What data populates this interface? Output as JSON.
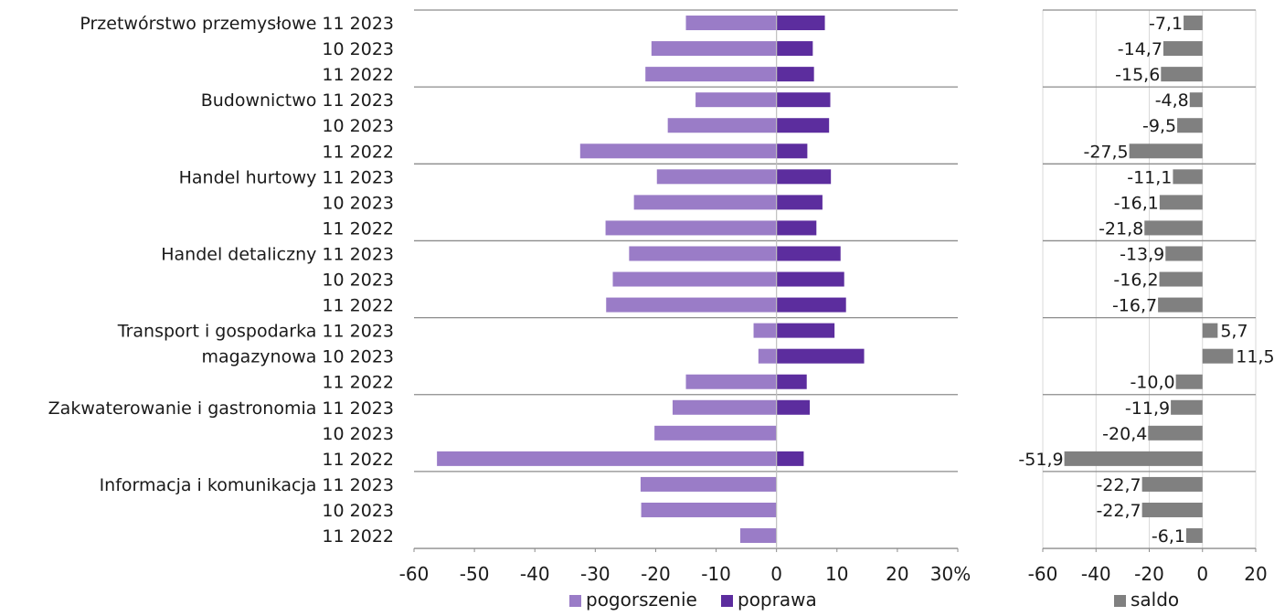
{
  "chart_data": [
    {
      "type": "bar",
      "orientation": "horizontal",
      "groups": [
        "Przetwórstwo przemysłowe",
        "Budownictwo",
        "Handel hurtowy",
        "Handel detaliczny",
        "Transport i gospodarka magazynowa",
        "Zakwaterowanie i gastronomia",
        "Informacja i komunikacja"
      ],
      "row_labels": [
        "Przetwórstwo przemysłowe 11 2023",
        "10 2023",
        "11 2022",
        "Budownictwo 11 2023",
        "10 2023",
        "11 2022",
        "Handel hurtowy 11 2023",
        "10 2023",
        "11 2022",
        "Handel detaliczny 11 2023",
        "10 2023",
        "11 2022",
        "Transport i gospodarka 11 2023",
        "magazynowa 10 2023",
        "11 2022",
        "Zakwaterowanie i gastronomia 11 2023",
        "10 2023",
        "11 2022",
        "Informacja i komunikacja 11 2023",
        "10 2023",
        "11 2022"
      ],
      "series": [
        {
          "name": "pogorszenie",
          "color": "#9a7cc7",
          "values": [
            -15,
            -20.7,
            -21.7,
            -13.4,
            -18,
            -32.5,
            -19.8,
            -23.6,
            -28.3,
            -24.4,
            -27.1,
            -28.2,
            -3.8,
            -3.0,
            -15.0,
            -17.2,
            -20.2,
            -56.2,
            -22.5,
            -22.4,
            -6.0
          ]
        },
        {
          "name": "poprawa",
          "color": "#5c2d9e",
          "values": [
            8.0,
            6.0,
            6.2,
            8.9,
            8.7,
            5.1,
            9.0,
            7.6,
            6.6,
            10.6,
            11.2,
            11.5,
            9.6,
            14.5,
            5.0,
            5.5,
            0,
            4.5,
            0,
            0,
            0
          ]
        }
      ],
      "xlim": [
        -60,
        30
      ],
      "xticks": [
        "-60",
        "-50",
        "-40",
        "-30",
        "-20",
        "-10",
        "0",
        "10",
        "20",
        "30%"
      ]
    },
    {
      "type": "bar",
      "orientation": "horizontal",
      "series": [
        {
          "name": "saldo",
          "color": "#808080",
          "values": [
            -7.1,
            -14.7,
            -15.6,
            -4.8,
            -9.5,
            -27.5,
            -11.1,
            -16.1,
            -21.8,
            -13.9,
            -16.2,
            -16.7,
            5.7,
            11.5,
            -10.0,
            -11.9,
            -20.4,
            -51.9,
            -22.7,
            -22.7,
            -6.1
          ],
          "labels": [
            "-7,1",
            "-14,7",
            "-15,6",
            "-4,8",
            "-9,5",
            "-27,5",
            "-11,1",
            "-16,1",
            "-21,8",
            "-13,9",
            "-16,2",
            "-16,7",
            "5,7",
            "11,5",
            "-10,0",
            "-11,9",
            "-20,4",
            "-51,9",
            "-22,7",
            "-22,7",
            "-6,1"
          ]
        }
      ],
      "xlim": [
        -60,
        20
      ],
      "xticks": [
        "-60",
        "-40",
        "-20",
        "0",
        "20"
      ],
      "grid": "vertical"
    }
  ],
  "legend": {
    "left_items": [
      {
        "label": "pogorszenie",
        "color": "#9a7cc7"
      },
      {
        "label": "poprawa",
        "color": "#5c2d9e"
      }
    ],
    "right_items": [
      {
        "label": "saldo",
        "color": "#808080"
      }
    ]
  }
}
